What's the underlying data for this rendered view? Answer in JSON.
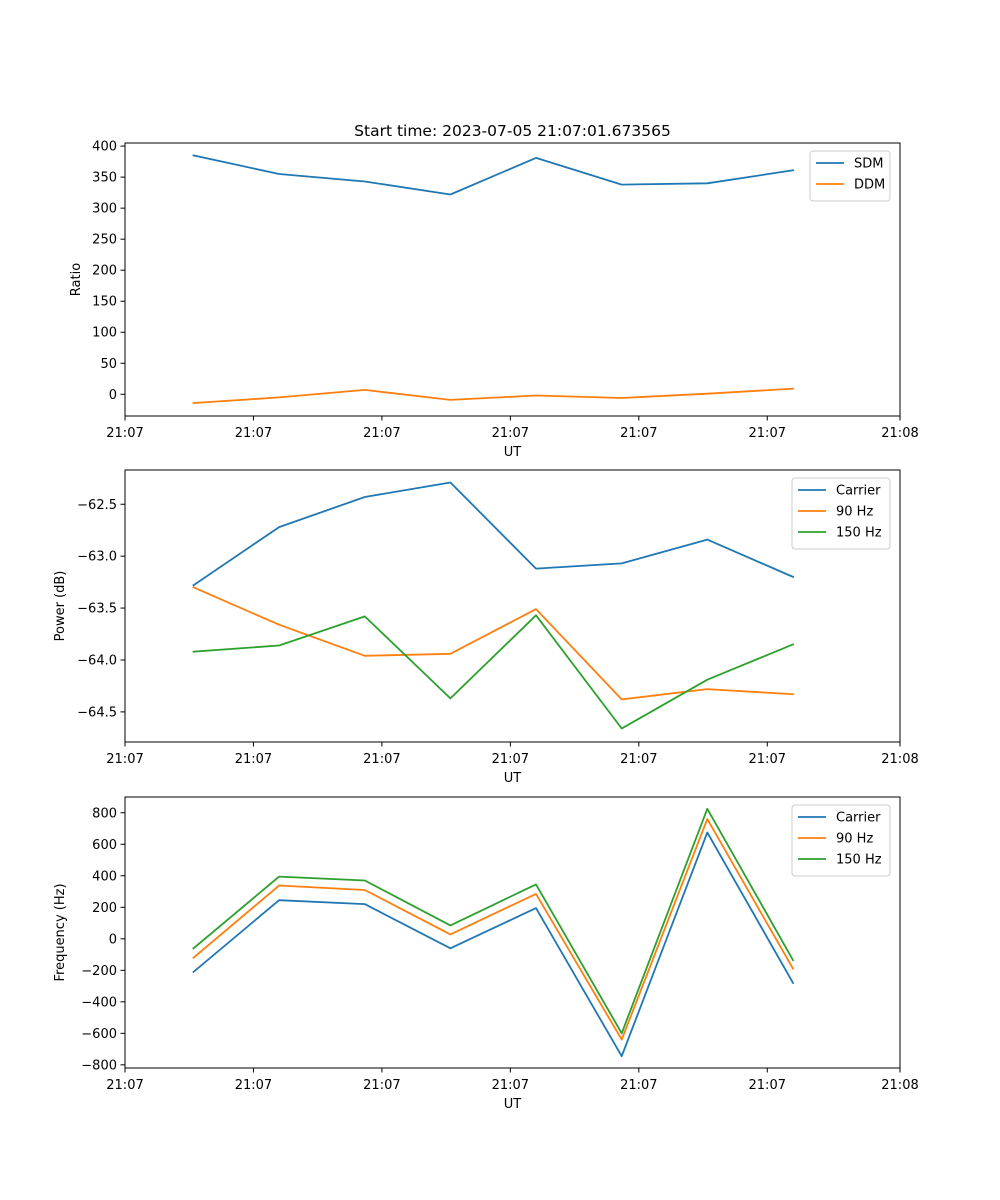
{
  "figure": {
    "title": "Start time: 2023-07-05 21:07:01.673565"
  },
  "colors": {
    "blue": "#1f77b4",
    "orange": "#ff7f0e",
    "green": "#2ca02c"
  },
  "chart_data": [
    {
      "type": "line",
      "title": "Start time: 2023-07-05 21:07:01.673565",
      "xlabel": "UT",
      "ylabel": "Ratio",
      "x": [
        1,
        2,
        3,
        4,
        5,
        6,
        7,
        8
      ],
      "xlim": [
        0.2,
        9.25
      ],
      "xticks": [
        0.2,
        1.7,
        3.2,
        4.7,
        6.2,
        7.7,
        9.25
      ],
      "xtick_labels": [
        "21:07",
        "21:07",
        "21:07",
        "21:07",
        "21:07",
        "21:07",
        "21:08"
      ],
      "ylim": [
        -35,
        405
      ],
      "yticks": [
        0,
        50,
        100,
        150,
        200,
        250,
        300,
        350,
        400
      ],
      "ytick_labels": [
        "0",
        "50",
        "100",
        "150",
        "200",
        "250",
        "300",
        "350",
        "400"
      ],
      "legend": "top-right",
      "series": [
        {
          "name": "SDM",
          "color": "#1f77b4",
          "values": [
            385,
            355,
            343,
            322,
            381,
            338,
            340,
            361
          ]
        },
        {
          "name": "DDM",
          "color": "#ff7f0e",
          "values": [
            -14,
            -5,
            7,
            -9,
            -2,
            -6,
            1,
            9
          ]
        }
      ]
    },
    {
      "type": "line",
      "xlabel": "UT",
      "ylabel": "Power (dB)",
      "x": [
        1,
        2,
        3,
        4,
        5,
        6,
        7,
        8
      ],
      "xlim": [
        0.2,
        9.25
      ],
      "xticks": [
        0.2,
        1.7,
        3.2,
        4.7,
        6.2,
        7.7,
        9.25
      ],
      "xtick_labels": [
        "21:07",
        "21:07",
        "21:07",
        "21:07",
        "21:07",
        "21:07",
        "21:08"
      ],
      "ylim": [
        -64.79,
        -62.17
      ],
      "yticks": [
        -62.5,
        -63.0,
        -63.5,
        -64.0,
        -64.5
      ],
      "ytick_labels": [
        "−62.5",
        "−63.0",
        "−63.5",
        "−64.0",
        "−64.5"
      ],
      "legend": "top-right",
      "series": [
        {
          "name": "Carrier",
          "color": "#1f77b4",
          "values": [
            -63.28,
            -62.72,
            -62.43,
            -62.29,
            -63.12,
            -63.07,
            -62.84,
            -63.2
          ]
        },
        {
          "name": "90 Hz",
          "color": "#ff7f0e",
          "values": [
            -63.3,
            -63.66,
            -63.96,
            -63.94,
            -63.51,
            -64.38,
            -64.28,
            -64.33
          ]
        },
        {
          "name": "150 Hz",
          "color": "#2ca02c",
          "values": [
            -63.92,
            -63.86,
            -63.58,
            -64.37,
            -63.57,
            -64.66,
            -64.19,
            -63.85
          ]
        }
      ]
    },
    {
      "type": "line",
      "xlabel": "UT",
      "ylabel": "Frequency (Hz)",
      "x": [
        1,
        2,
        3,
        4,
        5,
        6,
        7,
        8
      ],
      "xlim": [
        0.2,
        9.25
      ],
      "xticks": [
        0.2,
        1.7,
        3.2,
        4.7,
        6.2,
        7.7,
        9.25
      ],
      "xtick_labels": [
        "21:07",
        "21:07",
        "21:07",
        "21:07",
        "21:07",
        "21:07",
        "21:08"
      ],
      "ylim": [
        -820,
        900
      ],
      "yticks": [
        800,
        600,
        400,
        200,
        0,
        -200,
        -400,
        -600,
        -800
      ],
      "ytick_labels": [
        "800",
        "600",
        "400",
        "200",
        "0",
        "−200",
        "−400",
        "−600",
        "−800"
      ],
      "legend": "top-right",
      "series": [
        {
          "name": "Carrier",
          "color": "#1f77b4",
          "values": [
            -210,
            245,
            220,
            -60,
            195,
            -745,
            675,
            -280
          ]
        },
        {
          "name": "90 Hz",
          "color": "#ff7f0e",
          "values": [
            -120,
            338,
            310,
            28,
            285,
            -640,
            760,
            -190
          ]
        },
        {
          "name": "150 Hz",
          "color": "#2ca02c",
          "values": [
            -60,
            395,
            370,
            85,
            345,
            -600,
            825,
            -135
          ]
        }
      ]
    }
  ]
}
